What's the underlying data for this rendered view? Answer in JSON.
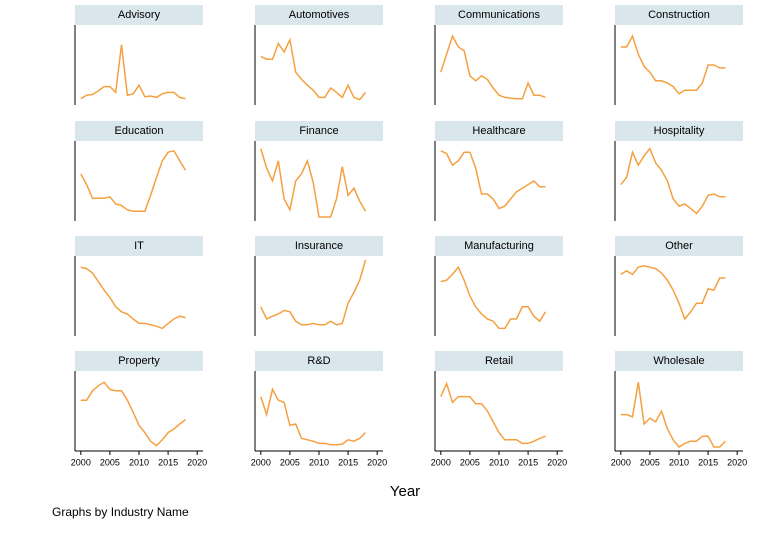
{
  "chart_data": {
    "type": "line",
    "color": "#f5a040",
    "x": [
      2000,
      2001,
      2002,
      2003,
      2004,
      2005,
      2006,
      2007,
      2008,
      2009,
      2010,
      2011,
      2012,
      2013,
      2014,
      2015,
      2016,
      2017,
      2018
    ],
    "xlim": [
      1999,
      2021
    ],
    "xticks": [
      2000,
      2005,
      2010,
      2015,
      2020
    ],
    "ylim": [
      0,
      100
    ],
    "xlabel": "Year",
    "note": "Graphs by Industry Name",
    "series": [
      {
        "name": "Advisory",
        "values": [
          3,
          8,
          9,
          14,
          20,
          20,
          12,
          78,
          8,
          10,
          22,
          6,
          7,
          5,
          10,
          12,
          12,
          5,
          3
        ]
      },
      {
        "name": "Automotives",
        "values": [
          62,
          58,
          58,
          80,
          68,
          85,
          40,
          30,
          22,
          15,
          5,
          5,
          18,
          12,
          5,
          22,
          5,
          2,
          12
        ]
      },
      {
        "name": "Communications",
        "values": [
          40,
          65,
          90,
          75,
          70,
          35,
          28,
          35,
          30,
          18,
          8,
          5,
          4,
          3,
          3,
          25,
          8,
          8,
          5
        ]
      },
      {
        "name": "Construction",
        "values": [
          75,
          75,
          90,
          65,
          48,
          40,
          28,
          28,
          25,
          20,
          10,
          15,
          15,
          15,
          25,
          50,
          50,
          46,
          46
        ]
      },
      {
        "name": "Education",
        "values": [
          60,
          45,
          26,
          26,
          26,
          28,
          18,
          16,
          10,
          8,
          8,
          8,
          30,
          55,
          78,
          90,
          92,
          78,
          65
        ]
      },
      {
        "name": "Finance",
        "values": [
          95,
          68,
          50,
          78,
          25,
          10,
          50,
          60,
          78,
          48,
          0,
          0,
          0,
          25,
          70,
          30,
          40,
          22,
          8
        ]
      },
      {
        "name": "Healthcare",
        "values": [
          92,
          88,
          72,
          78,
          90,
          90,
          68,
          32,
          32,
          25,
          12,
          15,
          25,
          35,
          40,
          45,
          50,
          42,
          42
        ]
      },
      {
        "name": "Hospitality",
        "values": [
          45,
          55,
          90,
          72,
          85,
          95,
          75,
          65,
          50,
          25,
          15,
          18,
          12,
          5,
          15,
          30,
          32,
          28,
          28
        ]
      },
      {
        "name": "IT",
        "values": [
          90,
          88,
          82,
          70,
          58,
          48,
          35,
          28,
          25,
          18,
          12,
          12,
          10,
          8,
          5,
          12,
          18,
          22,
          20
        ]
      },
      {
        "name": "Insurance",
        "values": [
          35,
          18,
          22,
          25,
          30,
          28,
          15,
          10,
          10,
          12,
          10,
          10,
          15,
          10,
          12,
          40,
          55,
          72,
          100
        ]
      },
      {
        "name": "Manufacturing",
        "values": [
          70,
          72,
          80,
          90,
          72,
          50,
          35,
          25,
          18,
          15,
          5,
          5,
          18,
          18,
          35,
          35,
          22,
          15,
          28
        ]
      },
      {
        "name": "Other",
        "values": [
          80,
          85,
          80,
          90,
          92,
          90,
          88,
          82,
          72,
          58,
          40,
          18,
          28,
          40,
          40,
          60,
          58,
          75,
          75
        ]
      },
      {
        "name": "Property",
        "values": [
          65,
          65,
          78,
          85,
          90,
          80,
          78,
          78,
          65,
          48,
          30,
          20,
          8,
          2,
          10,
          20,
          25,
          32,
          38
        ]
      },
      {
        "name": "R&D",
        "values": [
          70,
          45,
          80,
          65,
          62,
          30,
          32,
          12,
          10,
          8,
          5,
          5,
          3,
          3,
          4,
          10,
          8,
          12,
          20
        ]
      },
      {
        "name": "Retail",
        "values": [
          70,
          88,
          62,
          70,
          70,
          70,
          60,
          60,
          50,
          35,
          20,
          10,
          10,
          10,
          5,
          5,
          8,
          12,
          15
        ]
      },
      {
        "name": "Wholesale",
        "values": [
          45,
          45,
          42,
          90,
          32,
          40,
          35,
          50,
          25,
          10,
          0,
          5,
          8,
          8,
          15,
          15,
          0,
          0,
          8
        ]
      }
    ]
  }
}
